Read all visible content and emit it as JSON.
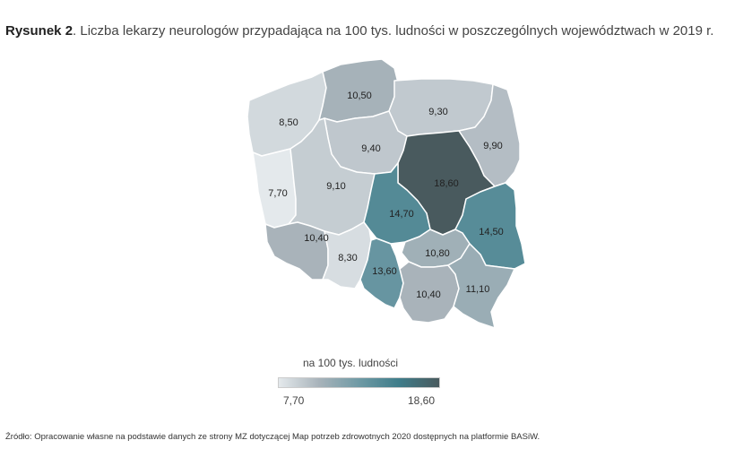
{
  "title": {
    "bold": "Rysunek 2",
    "rest": ". Liczba lekarzy neurologów przypadająca na 100 tys. ludności w poszczególnych województwach w 2019 r."
  },
  "map": {
    "regions": [
      {
        "id": "zachodniopomorskie",
        "label": "8,50",
        "value": 8.5
      },
      {
        "id": "pomorskie",
        "label": "10,50",
        "value": 10.5
      },
      {
        "id": "warminsko-mazurskie",
        "label": "9,30",
        "value": 9.3
      },
      {
        "id": "podlaskie",
        "label": "9,90",
        "value": 9.9
      },
      {
        "id": "kujawsko-pomorskie",
        "label": "9,40",
        "value": 9.4
      },
      {
        "id": "mazowieckie",
        "label": "18,60",
        "value": 18.6
      },
      {
        "id": "lubuskie",
        "label": "7,70",
        "value": 7.7
      },
      {
        "id": "wielkopolskie",
        "label": "9,10",
        "value": 9.1
      },
      {
        "id": "lodzkie",
        "label": "14,70",
        "value": 14.7
      },
      {
        "id": "lubelskie",
        "label": "14,50",
        "value": 14.5
      },
      {
        "id": "dolnoslaskie",
        "label": "10,40",
        "value": 10.4
      },
      {
        "id": "opolskie",
        "label": "8,30",
        "value": 8.3
      },
      {
        "id": "slaskie",
        "label": "13,60",
        "value": 13.6
      },
      {
        "id": "swietokrzyskie",
        "label": "10,80",
        "value": 10.8
      },
      {
        "id": "malopolskie",
        "label": "10,40",
        "value": 10.4
      },
      {
        "id": "podkarpackie",
        "label": "11,10",
        "value": 11.1
      }
    ]
  },
  "legend": {
    "title": "na 100 tys. ludności",
    "min_label": "7,70",
    "max_label": "18,60",
    "min_value": 7.7,
    "max_value": 18.6,
    "colors": [
      "#e4e9ec",
      "#a8b3ba",
      "#6f9aa5",
      "#3f7d8a",
      "#495a5e"
    ]
  },
  "source": "Źródło: Opracowanie własne na podstawie danych ze strony MZ dotyczącej Map potrzeb zdrowotnych 2020 dostępnych na platformie BASiW."
}
